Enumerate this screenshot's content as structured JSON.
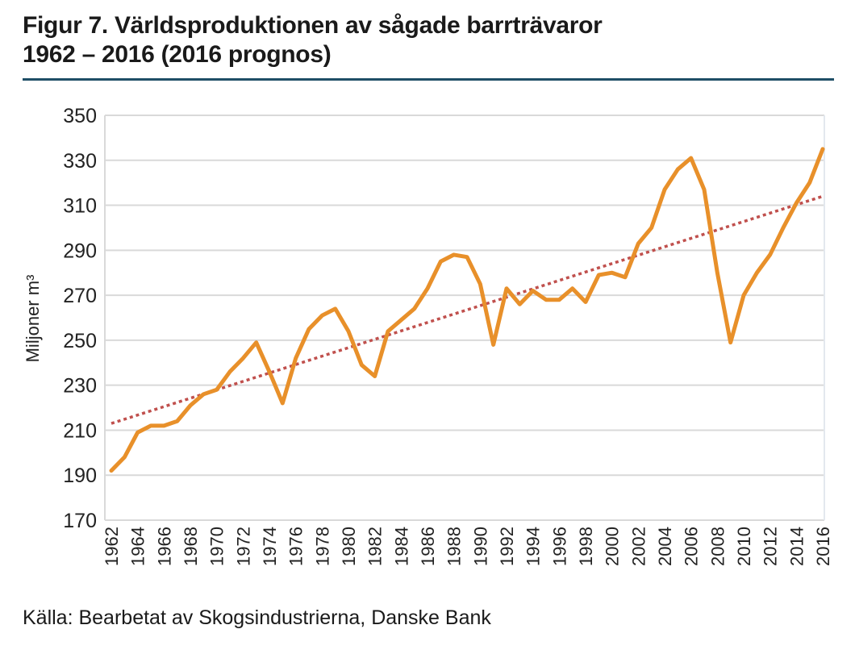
{
  "title_line1": "Figur 7. Världsproduktionen av sågade barrträvaror",
  "title_line2": "1962 – 2016 (2016 prognos)",
  "source": "Källa: Bearbetat av Skogsindustrierna, Danske Bank",
  "chart_data": {
    "type": "line",
    "title": "Figur 7. Världsproduktionen av sågade barrträvaror 1962 – 2016 (2016 prognos)",
    "xlabel": "",
    "ylabel": "Miljoner m³",
    "ylim": [
      170,
      350
    ],
    "yticks": [
      170,
      190,
      210,
      230,
      250,
      270,
      290,
      310,
      330,
      350
    ],
    "xticks": [
      1962,
      1964,
      1966,
      1968,
      1970,
      1972,
      1974,
      1976,
      1978,
      1980,
      1982,
      1984,
      1986,
      1988,
      1990,
      1992,
      1994,
      1996,
      1998,
      2000,
      2002,
      2004,
      2006,
      2008,
      2010,
      2012,
      2014,
      2016
    ],
    "grid": "horizontal",
    "colors": {
      "line": "#e8902a",
      "trend": "#c0504d",
      "grid": "#d9d9d9",
      "rule": "#1f4e66"
    },
    "x": [
      1962,
      1963,
      1964,
      1965,
      1966,
      1967,
      1968,
      1969,
      1970,
      1971,
      1972,
      1973,
      1974,
      1975,
      1976,
      1977,
      1978,
      1979,
      1980,
      1981,
      1982,
      1983,
      1984,
      1985,
      1986,
      1987,
      1988,
      1989,
      1990,
      1991,
      1992,
      1993,
      1994,
      1995,
      1996,
      1997,
      1998,
      1999,
      2000,
      2001,
      2002,
      2003,
      2004,
      2005,
      2006,
      2007,
      2008,
      2009,
      2010,
      2011,
      2012,
      2013,
      2014,
      2015,
      2016
    ],
    "series": [
      {
        "values": [
          192,
          198,
          209,
          212,
          212,
          214,
          221,
          226,
          228,
          236,
          242,
          249,
          236,
          222,
          242,
          255,
          261,
          264,
          254,
          239,
          234,
          254,
          259,
          264,
          273,
          285,
          288,
          287,
          275,
          248,
          273,
          266,
          272,
          268,
          268,
          273,
          267,
          279,
          280,
          278,
          293,
          300,
          317,
          326,
          331,
          317,
          280,
          249,
          270,
          280,
          288,
          300,
          311,
          320,
          335
        ]
      }
    ],
    "trendline": {
      "type": "linear",
      "start": [
        1962,
        213
      ],
      "end": [
        2016,
        314
      ]
    }
  }
}
